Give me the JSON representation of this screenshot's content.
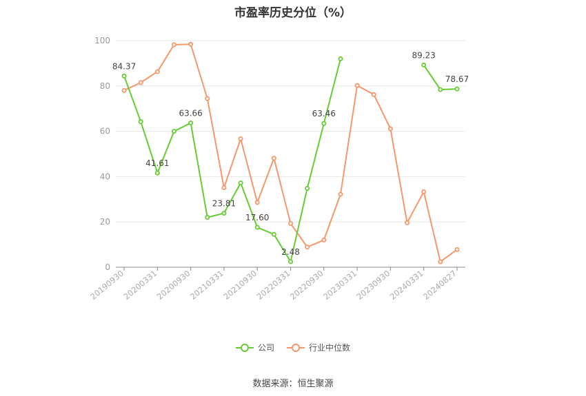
{
  "chart_data": {
    "type": "line",
    "title": "市盈率历史分位（%）",
    "xlabel": "",
    "ylabel": "",
    "ylim": [
      0,
      100
    ],
    "yticks": [
      0,
      20,
      40,
      60,
      80,
      100
    ],
    "grid": true,
    "legend_position": "bottom",
    "x": [
      "20190930",
      "20191231",
      "20200331",
      "20200630",
      "20200930",
      "20201231",
      "20210331",
      "20210630",
      "20210930",
      "20211231",
      "20220331",
      "20220630",
      "20220930",
      "20221231",
      "20230331",
      "20230630",
      "20230930",
      "20231231",
      "20240331",
      "20240630",
      "20240827"
    ],
    "xtick_labels": [
      "20190930",
      "20200331",
      "20200930",
      "20210331",
      "20210930",
      "20220331",
      "20220930",
      "20230331",
      "20230930",
      "20240331",
      "20240827"
    ],
    "series": [
      {
        "name": "公司",
        "color": "#66cc33",
        "values": [
          84.37,
          64.2,
          41.61,
          60.0,
          63.66,
          22.0,
          23.81,
          37.2,
          17.6,
          14.5,
          2.48,
          34.8,
          63.46,
          92.0,
          null,
          null,
          null,
          null,
          89.23,
          78.4,
          78.67
        ],
        "labels": {
          "0": "84.37",
          "2": "41.61",
          "4": "63.66",
          "6": "23.81",
          "8": "17.60",
          "10": "2.48",
          "12": "63.46",
          "18": "89.23",
          "20": "78.67"
        }
      },
      {
        "name": "行业中位数",
        "color": "#f5976b",
        "values": [
          78.0,
          81.5,
          86.3,
          98.2,
          98.4,
          74.4,
          35.1,
          56.7,
          28.6,
          48.1,
          19.3,
          8.9,
          12.0,
          32.2,
          80.2,
          76.2,
          61.1,
          19.6,
          33.3,
          2.4,
          7.8
        ]
      }
    ]
  },
  "source_text": "数据来源：恒生聚源"
}
